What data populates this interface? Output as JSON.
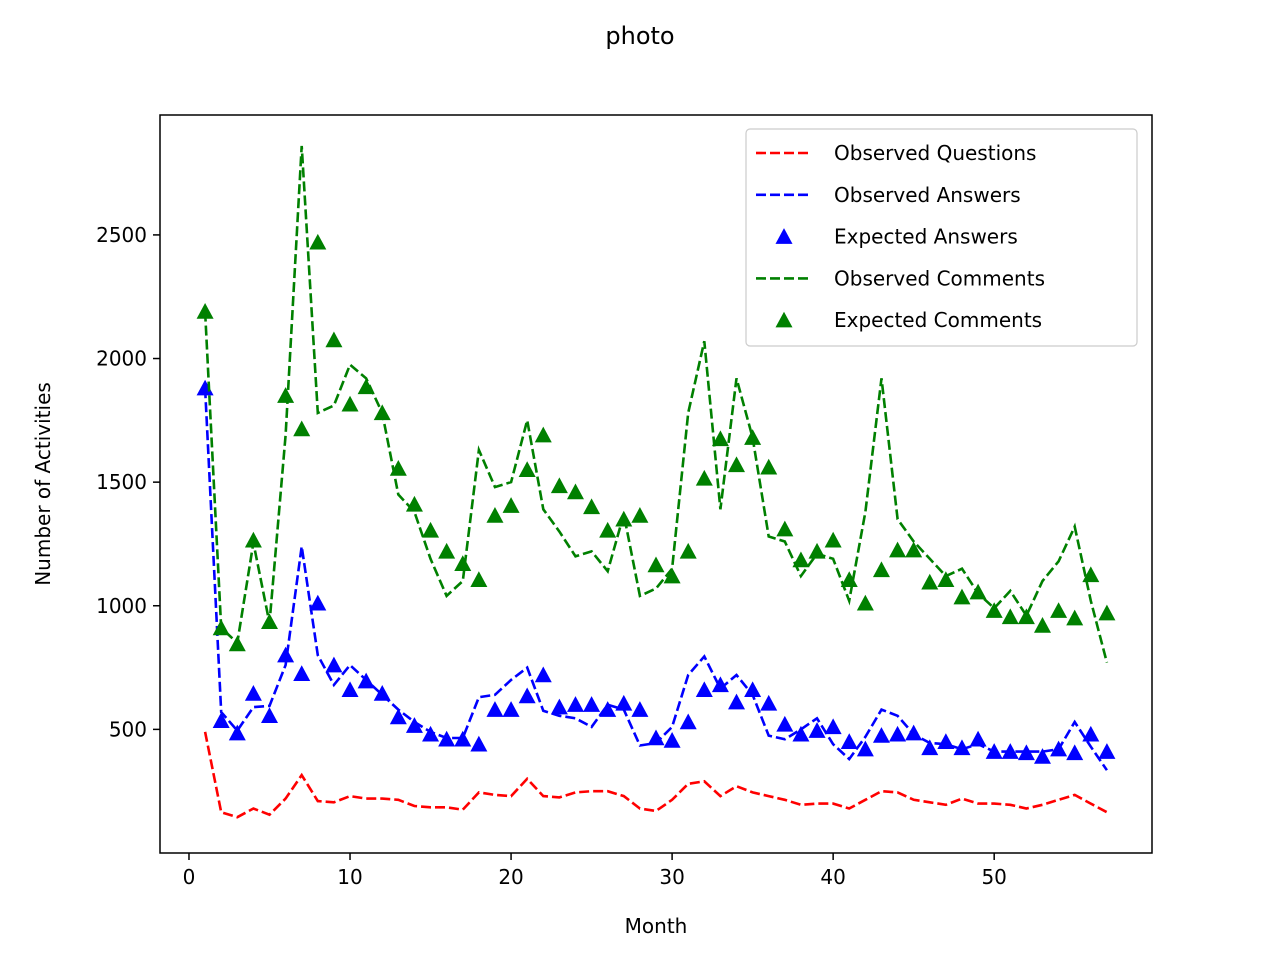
{
  "chart_data": {
    "type": "line",
    "title": "photo",
    "xlabel": "Month",
    "ylabel": "Number of Activities",
    "xlim": [
      -1.8,
      59.8
    ],
    "ylim": [
      0,
      2985
    ],
    "xticks": [
      0,
      10,
      20,
      30,
      40,
      50
    ],
    "yticks": [
      500,
      1000,
      1500,
      2000,
      2500
    ],
    "grid": false,
    "legend_position": "upper-right",
    "x": [
      1,
      2,
      3,
      4,
      5,
      6,
      7,
      8,
      9,
      10,
      11,
      12,
      13,
      14,
      15,
      16,
      17,
      18,
      19,
      20,
      21,
      22,
      23,
      24,
      25,
      26,
      27,
      28,
      29,
      30,
      31,
      32,
      33,
      34,
      35,
      36,
      37,
      38,
      39,
      40,
      41,
      42,
      43,
      44,
      45,
      46,
      47,
      48,
      49,
      50,
      51,
      52,
      53,
      54,
      55,
      56,
      57
    ],
    "series": [
      {
        "name": "Observed Questions",
        "style": "dashed-line",
        "color": "#ff0000",
        "values": [
          490,
          165,
          145,
          180,
          155,
          220,
          315,
          210,
          205,
          230,
          220,
          220,
          215,
          190,
          185,
          185,
          175,
          245,
          235,
          230,
          300,
          230,
          225,
          245,
          250,
          250,
          230,
          180,
          170,
          215,
          280,
          290,
          230,
          270,
          245,
          230,
          215,
          195,
          200,
          200,
          180,
          215,
          250,
          245,
          215,
          205,
          195,
          220,
          200,
          200,
          195,
          180,
          195,
          215,
          235,
          200,
          165
        ]
      },
      {
        "name": "Observed Answers",
        "style": "dashed-line",
        "color": "#0000ff",
        "values": [
          1880,
          570,
          495,
          590,
          595,
          760,
          1240,
          800,
          680,
          760,
          700,
          640,
          580,
          530,
          490,
          465,
          465,
          630,
          640,
          700,
          750,
          575,
          555,
          545,
          510,
          600,
          580,
          435,
          445,
          510,
          720,
          795,
          665,
          720,
          640,
          475,
          460,
          500,
          545,
          440,
          380,
          470,
          580,
          555,
          480,
          445,
          440,
          420,
          440,
          410,
          410,
          410,
          410,
          420,
          530,
          430,
          335
        ]
      },
      {
        "name": "Expected Answers",
        "style": "triangle-marker",
        "color": "#0000ff",
        "values": [
          1880,
          535,
          485,
          645,
          555,
          800,
          725,
          1010,
          760,
          660,
          695,
          645,
          550,
          515,
          480,
          460,
          460,
          440,
          580,
          580,
          635,
          720,
          590,
          600,
          600,
          580,
          605,
          580,
          465,
          455,
          530,
          660,
          680,
          610,
          660,
          605,
          520,
          480,
          495,
          510,
          450,
          420,
          475,
          480,
          485,
          425,
          450,
          425,
          460,
          410,
          410,
          405,
          390,
          420,
          405,
          480,
          410
        ]
      },
      {
        "name": "Observed Comments",
        "style": "dashed-line",
        "color": "#008000",
        "values": [
          2190,
          910,
          850,
          1255,
          930,
          1690,
          2860,
          1780,
          1810,
          1975,
          1920,
          1780,
          1450,
          1380,
          1190,
          1040,
          1100,
          1630,
          1480,
          1500,
          1750,
          1390,
          1300,
          1200,
          1220,
          1140,
          1370,
          1040,
          1070,
          1150,
          1780,
          2070,
          1390,
          1920,
          1680,
          1280,
          1260,
          1120,
          1210,
          1190,
          1020,
          1380,
          1920,
          1350,
          1260,
          1190,
          1120,
          1150,
          1050,
          990,
          1060,
          960,
          1100,
          1180,
          1320,
          1020,
          770
        ]
      },
      {
        "name": "Expected Comments",
        "style": "triangle-marker",
        "color": "#008000",
        "values": [
          2190,
          910,
          845,
          1265,
          935,
          1850,
          1715,
          2470,
          2075,
          1815,
          1885,
          1780,
          1555,
          1410,
          1305,
          1220,
          1170,
          1105,
          1365,
          1405,
          1550,
          1690,
          1485,
          1460,
          1400,
          1305,
          1350,
          1365,
          1165,
          1120,
          1220,
          1515,
          1675,
          1570,
          1680,
          1560,
          1310,
          1185,
          1220,
          1265,
          1105,
          1010,
          1145,
          1225,
          1225,
          1095,
          1105,
          1035,
          1055,
          980,
          955,
          955,
          920,
          980,
          950,
          1125,
          970
        ]
      }
    ]
  }
}
